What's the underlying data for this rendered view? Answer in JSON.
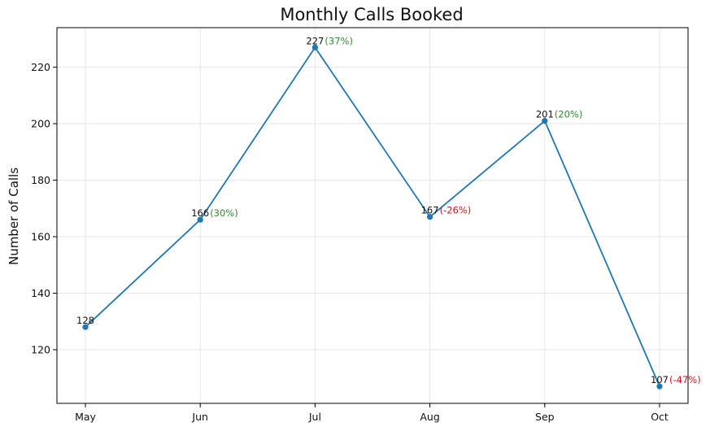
{
  "chart_data": {
    "type": "line",
    "title": "Monthly Calls Booked",
    "xlabel": "",
    "ylabel": "Number of Calls",
    "categories": [
      "May",
      "Jun",
      "Jul",
      "Aug",
      "Sep",
      "Oct"
    ],
    "values": [
      128,
      166,
      227,
      167,
      201,
      107
    ],
    "value_labels": [
      "128",
      "166",
      "227",
      "167",
      "201",
      "107"
    ],
    "change_labels": [
      "",
      "(30%)",
      "(37%)",
      "(-26%)",
      "(20%)",
      "(-47%)"
    ],
    "yticks": [
      120,
      140,
      160,
      180,
      200,
      220
    ],
    "ylim": [
      101,
      234
    ],
    "grid": true,
    "colors": {
      "line": "#1f77b4",
      "positive": "#2e8b2e",
      "negative": "#e0141e",
      "grid": "#e6e6e6"
    }
  }
}
